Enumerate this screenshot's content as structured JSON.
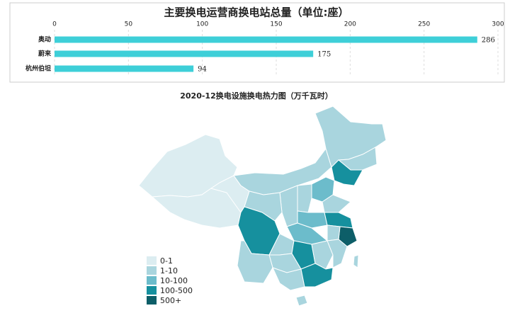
{
  "chart_data": [
    {
      "type": "bar",
      "title": "主要换电运营商换电站总量（单位:座）",
      "categories": [
        "奥动",
        "蔚来",
        "杭州伯坦"
      ],
      "values": [
        286,
        175,
        94
      ],
      "color": "#3ecfd8",
      "xlim": [
        0,
        300
      ],
      "xticks": [
        0,
        50,
        100,
        150,
        200,
        250,
        300
      ],
      "grid": true
    },
    {
      "type": "map",
      "title": "2020-12换电设施换电热力图（万千瓦时）",
      "legend": {
        "categories": [
          "0-1",
          "1-10",
          "10-100",
          "100-500",
          "500+"
        ],
        "colors": [
          "#dcedf1",
          "#a9d5de",
          "#6cbccb",
          "#16909e",
          "#0d5e68"
        ]
      }
    }
  ]
}
